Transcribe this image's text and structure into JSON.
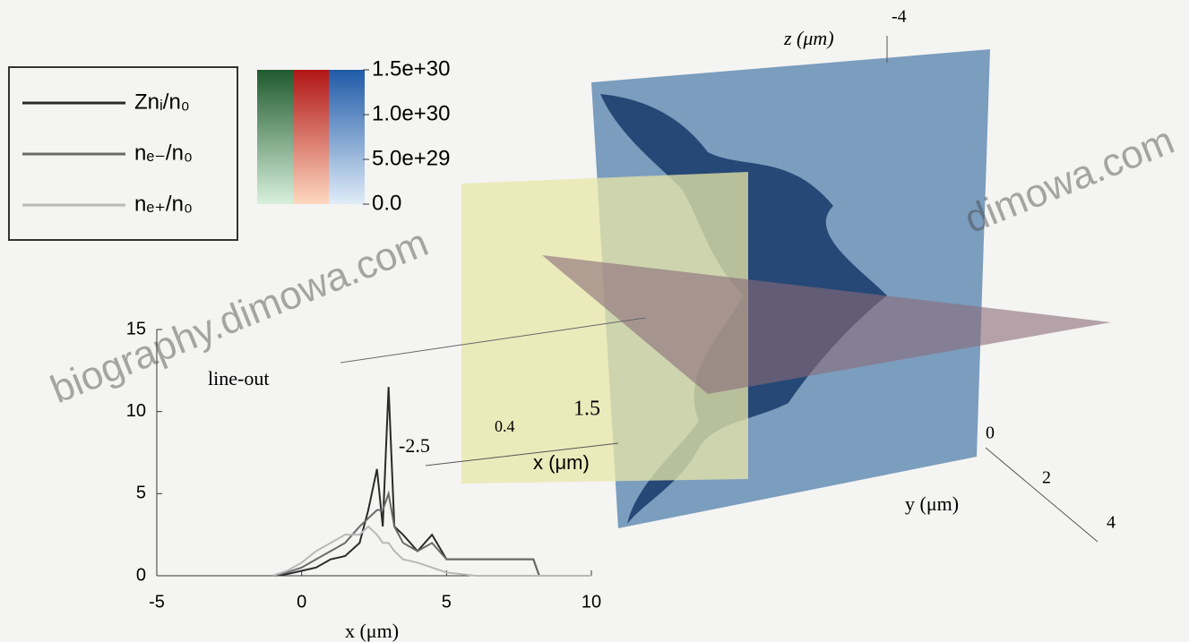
{
  "chart_data": {
    "type": "line",
    "annotation": "line-out",
    "xlabel": "x (μm)",
    "x": [
      -1,
      -0.5,
      0,
      0.5,
      1,
      1.5,
      2,
      2.3,
      2.6,
      2.8,
      3,
      3.2,
      3.5,
      4,
      4.5,
      5,
      6,
      7,
      8,
      8.2,
      10
    ],
    "series": [
      {
        "name": "Znᵢ/n₀",
        "color": "#2a2a2a",
        "values": [
          0,
          0.1,
          0.3,
          0.5,
          1,
          1.2,
          2,
          4,
          6.5,
          3,
          11.5,
          3,
          2.5,
          1.5,
          2.5,
          1,
          1,
          1,
          1,
          0,
          0
        ]
      },
      {
        "name": "nₑ₋/n₀",
        "color": "#6a6a6a",
        "values": [
          0,
          0.2,
          0.5,
          1,
          1.5,
          2,
          3,
          3.5,
          4,
          4,
          5,
          3,
          2,
          1.5,
          2,
          1,
          1,
          1,
          1,
          0,
          0
        ]
      },
      {
        "name": "nₑ₊/n₀",
        "color": "#b8b8b8",
        "values": [
          0,
          0.3,
          0.8,
          1.5,
          2,
          2.5,
          2.5,
          3,
          2.5,
          2,
          2,
          1.5,
          1,
          0.8,
          0.5,
          0.2,
          0,
          0,
          0,
          0,
          0
        ]
      }
    ],
    "xlim": [
      -5,
      10
    ],
    "xticks": [
      -5,
      0,
      5,
      10
    ],
    "ylim": [
      0,
      15
    ],
    "yticks": [
      0,
      5,
      10,
      15
    ],
    "colorbar": {
      "lim": [
        0,
        1.5e+30
      ],
      "ticks": [
        {
          "value": 1.5e+30,
          "label": "1.5e+30"
        },
        {
          "value": 1e+30,
          "label": "1.0e+30"
        },
        {
          "value": 5e+29,
          "label": "5.0e+29"
        },
        {
          "value": 0,
          "label": "0.0"
        }
      ]
    }
  },
  "scene": {
    "z_label": "z (μm)",
    "z_tick": "-4",
    "y_label": "y (μm)",
    "y_ticks": [
      "0",
      "2",
      "4"
    ],
    "x_label": "x (μm)",
    "x_ticks": [
      "-2.5",
      "0.4",
      "1.5"
    ]
  },
  "watermarks": [
    "biography.dimowa.com",
    "dimowa.com"
  ]
}
